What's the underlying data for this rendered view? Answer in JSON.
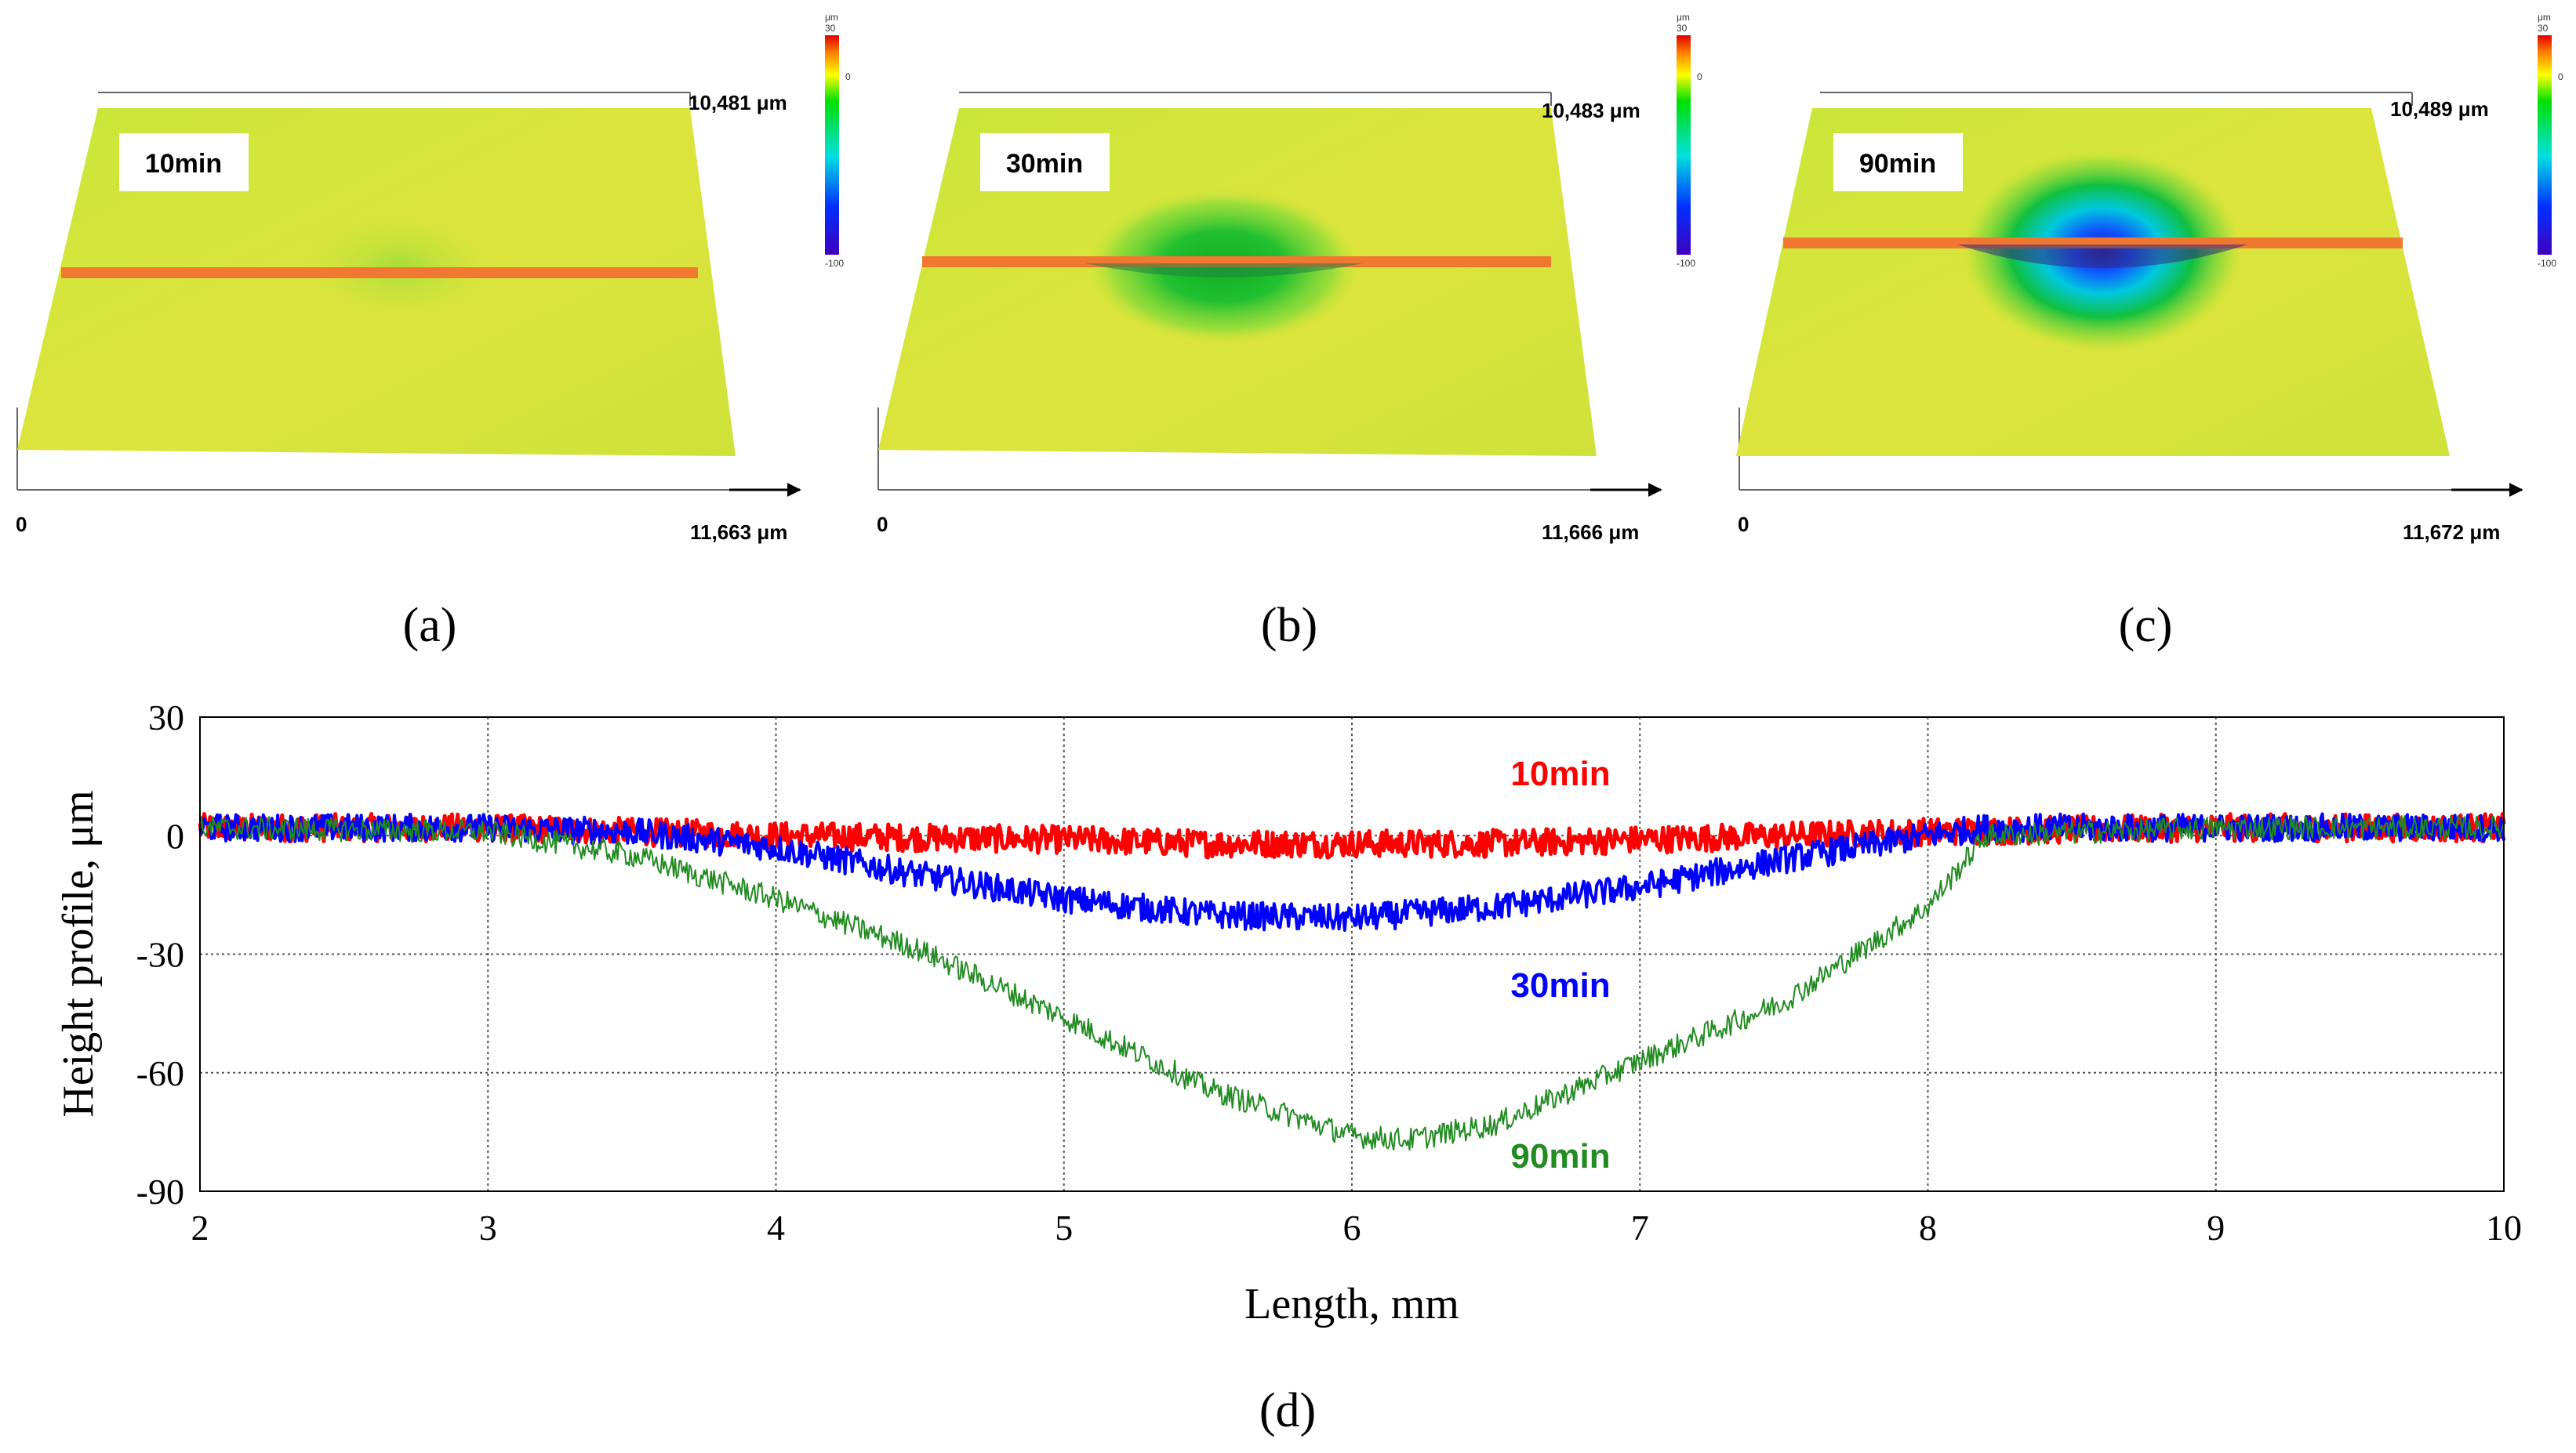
{
  "panels": [
    {
      "id": "a",
      "label": "(a)",
      "time_label": "10min",
      "y_extent_label": "10,481 μm",
      "x_extent_label": "11,663 μm",
      "origin_label": "0",
      "depression": 0.05,
      "colorbar": {
        "unit": "μm",
        "max": "30",
        "zero": "0",
        "min": "-100"
      }
    },
    {
      "id": "b",
      "label": "(b)",
      "time_label": "30min",
      "y_extent_label": "10,483 μm",
      "x_extent_label": "11,666 μm",
      "origin_label": "0",
      "depression": 0.45,
      "colorbar": {
        "unit": "μm",
        "max": "30",
        "zero": "0",
        "min": "-100"
      }
    },
    {
      "id": "c",
      "label": "(c)",
      "time_label": "90min",
      "y_extent_label": "10,489 μm",
      "x_extent_label": "11,672 μm",
      "origin_label": "0",
      "depression": 1.0,
      "colorbar": {
        "unit": "μm",
        "max": "30",
        "zero": "0",
        "min": "-100"
      }
    }
  ],
  "chart_data": {
    "type": "line",
    "panel_label": "(d)",
    "xlabel": "Length, mm",
    "ylabel": "Height profile, μm",
    "xlim": [
      2,
      10
    ],
    "ylim": [
      -90,
      30
    ],
    "xticks": [
      "2",
      "3",
      "4",
      "5",
      "6",
      "7",
      "8",
      "9",
      "10"
    ],
    "yticks": [
      "30",
      "0",
      "-30",
      "-60",
      "-90"
    ],
    "grid": true,
    "series": [
      {
        "name": "10min",
        "color": "#ff0000",
        "noise": 3.5,
        "x": [
          2,
          3,
          3.5,
          4,
          5,
          5.5,
          6,
          6.5,
          7,
          7.5,
          8,
          9,
          10
        ],
        "y": [
          2,
          2,
          1,
          0,
          -1,
          -2,
          -2,
          -2,
          -1,
          0,
          1,
          2,
          2
        ]
      },
      {
        "name": "30min",
        "color": "#0000ff",
        "noise": 3.5,
        "x": [
          2,
          3,
          3.5,
          4,
          4.5,
          5,
          5.5,
          6,
          6.5,
          7,
          7.5,
          8,
          8.2,
          9,
          10
        ],
        "y": [
          2,
          2,
          1,
          -3,
          -10,
          -16,
          -20,
          -21,
          -18,
          -13,
          -6,
          0,
          2,
          2,
          2
        ]
      },
      {
        "name": "90min",
        "color": "#228b22",
        "noise": 3,
        "x": [
          2,
          3,
          3.5,
          4,
          4.5,
          5,
          5.5,
          6,
          6.2,
          6.5,
          7,
          7.5,
          8,
          8.2,
          9,
          10
        ],
        "y": [
          2,
          1,
          -5,
          -16,
          -29,
          -46,
          -64,
          -76,
          -77,
          -73,
          -57,
          -42,
          -18,
          0,
          2,
          2
        ]
      }
    ]
  }
}
